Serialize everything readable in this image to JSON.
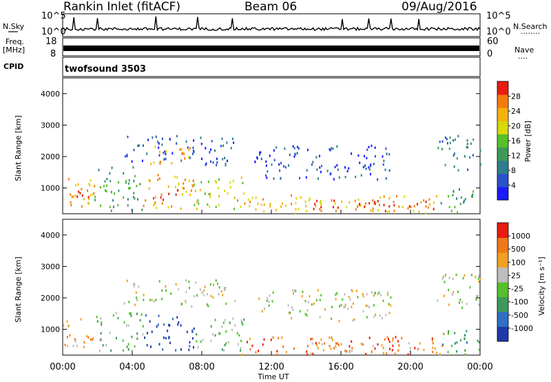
{
  "header": {
    "station": "Rankin Inlet (fitACF)",
    "beam": "Beam 06",
    "date": "09/Aug/2016"
  },
  "top_panels": {
    "nsky_label": "N.Sky",
    "nsearch_label": "N.Search",
    "nsearch_dots": "........",
    "nsky_ticks": [
      "10^5",
      "10^0"
    ],
    "nsearch_ticks": [
      "10^5",
      "10^0"
    ],
    "freq_label": "Freq.",
    "freq_unit": "[MHz]",
    "freq_ticks": [
      "18",
      "8"
    ],
    "nave_label": "Nave",
    "nave_dots": "....",
    "nave_ticks": [
      "60",
      "0"
    ],
    "cpid_label": "CPID",
    "cpid_value": "twofsound 3503"
  },
  "colors": {
    "power": [
      "#1a1aff",
      "#2a52c8",
      "#2e7d8c",
      "#3c9a5a",
      "#54c02a",
      "#d8d80a",
      "#f3b30c",
      "#f47c0f",
      "#e81c10"
    ],
    "velocity": [
      "#1d3aa8",
      "#2f6fc4",
      "#3c9a5a",
      "#54c02a",
      "#bdbdbd",
      "#f0a020",
      "#f07818",
      "#e81c10"
    ]
  },
  "chart_data": [
    {
      "type": "heatmap",
      "title": "Power",
      "ylabel": "Slant Range [km]",
      "xlabel": "Time UT",
      "ylim": [
        180,
        4500
      ],
      "yticks": [
        "4000",
        "3000",
        "2000",
        "1000"
      ],
      "xticks": [
        "00:00",
        "04:00",
        "08:00",
        "12:00",
        "16:00",
        "20:00",
        "00:00"
      ],
      "colorbar_label": "Power [dB]",
      "colorbar_ticks": [
        "28",
        "24",
        "20",
        "16",
        "12",
        "8",
        "4"
      ],
      "regions": [
        {
          "t0": 0.0,
          "t1": 1.8,
          "r0": 350,
          "r1": 1450,
          "level": 6
        },
        {
          "t0": 0.3,
          "t1": 1.5,
          "r0": 650,
          "r1": 1150,
          "level": 8
        },
        {
          "t0": 1.8,
          "t1": 4.6,
          "r0": 300,
          "r1": 1700,
          "level": 3
        },
        {
          "t0": 4.6,
          "t1": 7.5,
          "r0": 350,
          "r1": 1500,
          "level": 6
        },
        {
          "t0": 5.0,
          "t1": 6.6,
          "r0": 650,
          "r1": 1050,
          "level": 8
        },
        {
          "t0": 7.5,
          "t1": 10.5,
          "r0": 350,
          "r1": 1400,
          "level": 5
        },
        {
          "t0": 3.5,
          "t1": 9.8,
          "r0": 1750,
          "r1": 2700,
          "level": 1
        },
        {
          "t0": 5.0,
          "t1": 7.5,
          "r0": 1800,
          "r1": 2400,
          "level": 6
        },
        {
          "t0": 10.2,
          "t1": 21.8,
          "r0": 180,
          "r1": 800,
          "level": 6
        },
        {
          "t0": 14.0,
          "t1": 21.5,
          "r0": 300,
          "r1": 650,
          "level": 8
        },
        {
          "t0": 11.0,
          "t1": 19.0,
          "r0": 1300,
          "r1": 2400,
          "level": 1
        },
        {
          "t0": 21.5,
          "t1": 24.0,
          "r0": 1600,
          "r1": 2700,
          "level": 2
        },
        {
          "t0": 21.5,
          "t1": 24.0,
          "r0": 200,
          "r1": 1000,
          "level": 3
        }
      ]
    },
    {
      "type": "heatmap",
      "title": "Velocity",
      "ylabel": "Slant Range [km]",
      "xlabel": "Time UT",
      "ylim": [
        180,
        4500
      ],
      "yticks": [
        "4000",
        "3000",
        "2000",
        "1000"
      ],
      "xticks": [
        "00:00",
        "04:00",
        "08:00",
        "12:00",
        "16:00",
        "20:00",
        "00:00"
      ],
      "colorbar_label": "Velocity [m s⁻¹]",
      "colorbar_ticks": [
        "1000",
        "500",
        "100",
        "25",
        "-25",
        "-100",
        "-500",
        "-1000"
      ],
      "regions": [
        {
          "t0": 0.0,
          "t1": 1.8,
          "r0": 400,
          "r1": 1400,
          "level": 5
        },
        {
          "t0": 1.8,
          "t1": 4.6,
          "r0": 350,
          "r1": 1600,
          "level": 3
        },
        {
          "t0": 4.6,
          "t1": 7.6,
          "r0": 350,
          "r1": 1500,
          "level": 0
        },
        {
          "t0": 7.6,
          "t1": 10.6,
          "r0": 350,
          "r1": 1400,
          "level": 3
        },
        {
          "t0": 3.5,
          "t1": 10.0,
          "r0": 1750,
          "r1": 2600,
          "level": 4
        },
        {
          "t0": 10.2,
          "t1": 21.8,
          "r0": 180,
          "r1": 800,
          "level": 6
        },
        {
          "t0": 14.0,
          "t1": 21.5,
          "r0": 250,
          "r1": 600,
          "level": 5
        },
        {
          "t0": 11.0,
          "t1": 19.0,
          "r0": 1300,
          "r1": 2300,
          "level": 4
        },
        {
          "t0": 21.5,
          "t1": 24.0,
          "r0": 1700,
          "r1": 2800,
          "level": 4
        },
        {
          "t0": 21.5,
          "t1": 24.0,
          "r0": 200,
          "r1": 1000,
          "level": 2
        }
      ]
    }
  ]
}
